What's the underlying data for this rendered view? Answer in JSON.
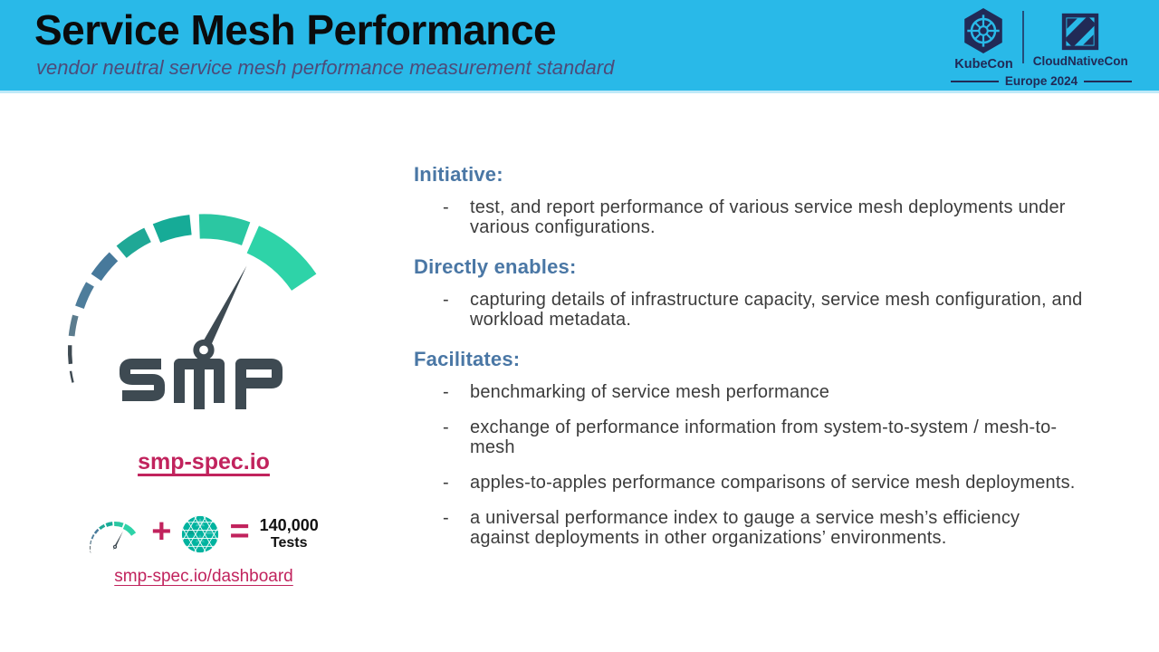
{
  "slide": {
    "title": "Service Mesh Performance",
    "subtitle": "vendor neutral service mesh performance measurement standard"
  },
  "event_branding": {
    "kubecon": "KubeCon",
    "cloudnativecon": "CloudNativeCon",
    "event": "Europe 2024"
  },
  "left_panel": {
    "wordmark": "SMP",
    "primary_link": "smp-spec.io",
    "equation": {
      "plus": "+",
      "equals": "=",
      "count": "140,000",
      "count_label": "Tests"
    },
    "dashboard_link": "smp-spec.io/dashboard"
  },
  "bullet_marker": "-",
  "sections": [
    {
      "heading": "Initiative:",
      "bullets": [
        "test, and report performance of various service mesh deployments under various configurations."
      ]
    },
    {
      "heading": "Directly enables:",
      "bullets": [
        "capturing details of infrastructure capacity, service mesh configuration, and workload metadata."
      ]
    },
    {
      "heading": "Facilitates:",
      "bullets": [
        "benchmarking of service mesh performance",
        "exchange of performance information from system-to-system / mesh-to-mesh",
        "apples-to-apples performance comparisons of service mesh deployments.",
        "a universal performance index to gauge a service mesh’s efficiency against deployments in other organizations’ environments."
      ]
    }
  ],
  "colors": {
    "header_bg": "#29b9e8",
    "navy": "#212a56",
    "title_text": "#0b0b0c",
    "subtitle_text": "#4d4b79",
    "heading_blue": "#4a77a5",
    "body_text": "#3c3c3c",
    "link_crimson": "#c1235d",
    "smp_dark": "#3e4a52",
    "meshery_teal": "#00b39f",
    "gauge_segments": [
      "#3e4a52",
      "#3e4a52",
      "#5c7c8e",
      "#4e7d9b",
      "#47799b",
      "#1fa896",
      "#16ab97",
      "#2bc7a2",
      "#2ed3a8"
    ]
  }
}
